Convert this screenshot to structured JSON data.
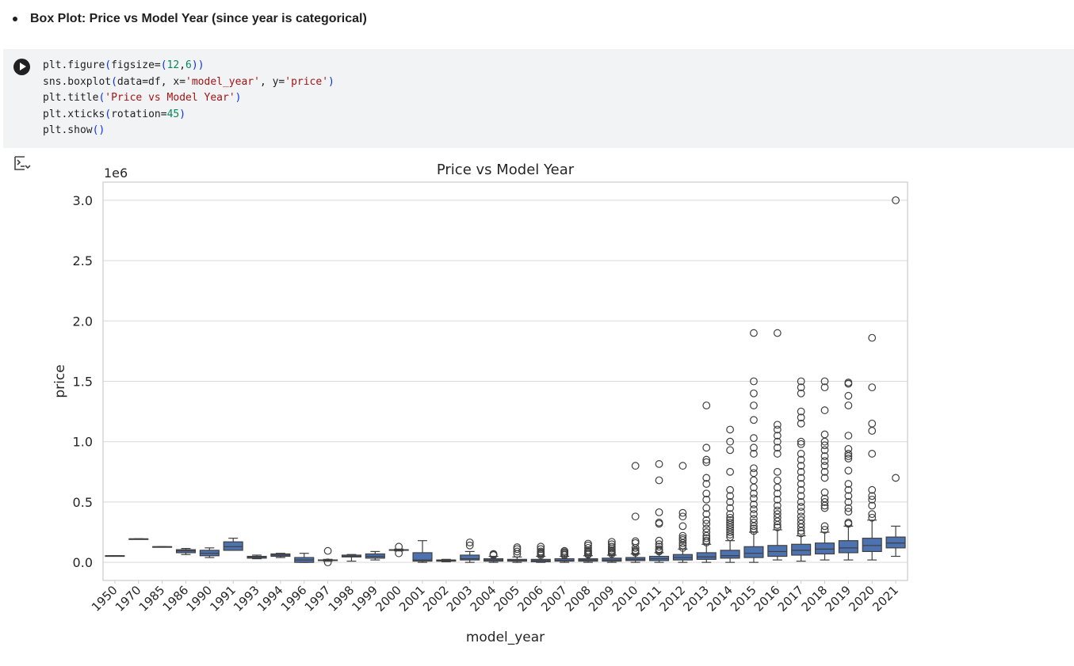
{
  "markdown": {
    "bullet_text": "Box Plot: Price vs Model Year (since year is categorical)"
  },
  "code_cell": {
    "lines": [
      [
        {
          "t": "plt.figure"
        },
        {
          "t": "(",
          "c": "par"
        },
        {
          "t": "figsize="
        },
        {
          "t": "(",
          "c": "par"
        },
        {
          "t": "12",
          "c": "num"
        },
        {
          "t": ","
        },
        {
          "t": "6",
          "c": "num"
        },
        {
          "t": "))",
          "c": "par"
        }
      ],
      [
        {
          "t": "sns.boxplot"
        },
        {
          "t": "(",
          "c": "par"
        },
        {
          "t": "data=df, x="
        },
        {
          "t": "'model_year'",
          "c": "str"
        },
        {
          "t": ", y="
        },
        {
          "t": "'price'",
          "c": "str"
        },
        {
          "t": ")",
          "c": "par"
        }
      ],
      [
        {
          "t": "plt.title"
        },
        {
          "t": "(",
          "c": "par"
        },
        {
          "t": "'Price vs Model Year'",
          "c": "str"
        },
        {
          "t": ")",
          "c": "par"
        }
      ],
      [
        {
          "t": "plt.xticks"
        },
        {
          "t": "(",
          "c": "par"
        },
        {
          "t": "rotation="
        },
        {
          "t": "45",
          "c": "num"
        },
        {
          "t": ")",
          "c": "par"
        }
      ],
      [
        {
          "t": "plt.show"
        },
        {
          "t": "()",
          "c": "par"
        }
      ]
    ]
  },
  "icons": {
    "run": "play-icon",
    "output_toggle": "output-toggle-icon"
  },
  "colors": {
    "box_fill": "#4c72b0",
    "box_edge": "#3f3f3f",
    "grid": "#d9d9d9",
    "cell_bg": "#f2f3f5"
  },
  "chart_data": {
    "type": "box",
    "title": "Price vs Model Year",
    "xlabel": "model_year",
    "ylabel": "price",
    "y_offset_text": "1e6",
    "ylim": [
      -0.15,
      3.15
    ],
    "yticks": [
      0.0,
      0.5,
      1.0,
      1.5,
      2.0,
      2.5,
      3.0
    ],
    "ytick_labels": [
      "0.0",
      "0.5",
      "1.0",
      "1.5",
      "2.0",
      "2.5",
      "3.0"
    ],
    "grid": true,
    "xtick_rotation": 45,
    "categories": [
      "1950",
      "1970",
      "1985",
      "1986",
      "1990",
      "1991",
      "1993",
      "1994",
      "1996",
      "1997",
      "1998",
      "1999",
      "2000",
      "2001",
      "2002",
      "2003",
      "2004",
      "2005",
      "2006",
      "2007",
      "2008",
      "2009",
      "2010",
      "2011",
      "2012",
      "2013",
      "2014",
      "2015",
      "2016",
      "2017",
      "2018",
      "2019",
      "2020",
      "2021"
    ],
    "boxes": [
      {
        "whislo": 0.055,
        "q1": 0.055,
        "med": 0.055,
        "q3": 0.055,
        "whishi": 0.055,
        "fliers": []
      },
      {
        "whislo": 0.195,
        "q1": 0.195,
        "med": 0.195,
        "q3": 0.195,
        "whishi": 0.195,
        "fliers": []
      },
      {
        "whislo": 0.13,
        "q1": 0.13,
        "med": 0.13,
        "q3": 0.13,
        "whishi": 0.13,
        "fliers": []
      },
      {
        "whislo": 0.065,
        "q1": 0.08,
        "med": 0.095,
        "q3": 0.105,
        "whishi": 0.115,
        "fliers": []
      },
      {
        "whislo": 0.04,
        "q1": 0.055,
        "med": 0.075,
        "q3": 0.1,
        "whishi": 0.12,
        "fliers": []
      },
      {
        "whislo": 0.1,
        "q1": 0.1,
        "med": 0.13,
        "q3": 0.17,
        "whishi": 0.2,
        "fliers": []
      },
      {
        "whislo": 0.03,
        "q1": 0.035,
        "med": 0.045,
        "q3": 0.05,
        "whishi": 0.06,
        "fliers": []
      },
      {
        "whislo": 0.04,
        "q1": 0.05,
        "med": 0.06,
        "q3": 0.07,
        "whishi": 0.075,
        "fliers": []
      },
      {
        "whislo": 0.0,
        "q1": 0.0,
        "med": 0.02,
        "q3": 0.04,
        "whishi": 0.075,
        "fliers": []
      },
      {
        "whislo": 0.01,
        "q1": 0.02,
        "med": 0.02,
        "q3": 0.02,
        "whishi": 0.025,
        "fliers": [
          0.095,
          0.0
        ]
      },
      {
        "whislo": 0.01,
        "q1": 0.045,
        "med": 0.05,
        "q3": 0.06,
        "whishi": 0.065,
        "fliers": []
      },
      {
        "whislo": 0.02,
        "q1": 0.035,
        "med": 0.05,
        "q3": 0.07,
        "whishi": 0.09,
        "fliers": []
      },
      {
        "whislo": 0.095,
        "q1": 0.1,
        "med": 0.1,
        "q3": 0.105,
        "whishi": 0.11,
        "fliers": [
          0.13,
          0.075
        ]
      },
      {
        "whislo": 0.0,
        "q1": 0.01,
        "med": 0.02,
        "q3": 0.08,
        "whishi": 0.18,
        "fliers": []
      },
      {
        "whislo": 0.005,
        "q1": 0.01,
        "med": 0.015,
        "q3": 0.02,
        "whishi": 0.025,
        "fliers": []
      },
      {
        "whislo": 0.0,
        "q1": 0.02,
        "med": 0.03,
        "q3": 0.06,
        "whishi": 0.09,
        "fliers": [
          0.165,
          0.14
        ]
      },
      {
        "whislo": 0.0,
        "q1": 0.01,
        "med": 0.02,
        "q3": 0.03,
        "whishi": 0.05,
        "fliers": [
          0.07,
          0.065,
          0.06
        ]
      },
      {
        "whislo": 0.0,
        "q1": 0.01,
        "med": 0.015,
        "q3": 0.025,
        "whishi": 0.045,
        "fliers": [
          0.125,
          0.11,
          0.09,
          0.07
        ]
      },
      {
        "whislo": 0.0,
        "q1": 0.005,
        "med": 0.015,
        "q3": 0.025,
        "whishi": 0.05,
        "fliers": [
          0.13,
          0.11,
          0.09,
          0.08,
          0.07,
          0.06
        ]
      },
      {
        "whislo": 0.0,
        "q1": 0.01,
        "med": 0.015,
        "q3": 0.03,
        "whishi": 0.05,
        "fliers": [
          0.095,
          0.085,
          0.075,
          0.065,
          0.06
        ]
      },
      {
        "whislo": 0.0,
        "q1": 0.01,
        "med": 0.02,
        "q3": 0.03,
        "whishi": 0.055,
        "fliers": [
          0.155,
          0.14,
          0.12,
          0.1,
          0.09,
          0.08,
          0.07,
          0.065
        ]
      },
      {
        "whislo": 0.0,
        "q1": 0.01,
        "med": 0.02,
        "q3": 0.035,
        "whishi": 0.06,
        "fliers": [
          0.17,
          0.15,
          0.13,
          0.115,
          0.1,
          0.09,
          0.08,
          0.07
        ]
      },
      {
        "whislo": 0.0,
        "q1": 0.015,
        "med": 0.025,
        "q3": 0.04,
        "whishi": 0.07,
        "fliers": [
          0.8,
          0.38,
          0.175,
          0.16,
          0.12,
          0.1,
          0.09,
          0.08
        ]
      },
      {
        "whislo": 0.0,
        "q1": 0.015,
        "med": 0.03,
        "q3": 0.05,
        "whishi": 0.08,
        "fliers": [
          0.815,
          0.68,
          0.415,
          0.33,
          0.32,
          0.18,
          0.15,
          0.13,
          0.11,
          0.1,
          0.09
        ]
      },
      {
        "whislo": 0.0,
        "q1": 0.02,
        "med": 0.04,
        "q3": 0.065,
        "whishi": 0.11,
        "fliers": [
          0.8,
          0.41,
          0.38,
          0.3,
          0.22,
          0.2,
          0.185,
          0.16,
          0.14,
          0.12
        ]
      },
      {
        "whislo": 0.0,
        "q1": 0.025,
        "med": 0.045,
        "q3": 0.08,
        "whishi": 0.15,
        "fliers": [
          1.3,
          0.95,
          0.85,
          0.83,
          0.7,
          0.65,
          0.57,
          0.52,
          0.45,
          0.4,
          0.35,
          0.32,
          0.28,
          0.25,
          0.22,
          0.2,
          0.18,
          0.165
        ]
      },
      {
        "whislo": 0.0,
        "q1": 0.035,
        "med": 0.055,
        "q3": 0.1,
        "whishi": 0.18,
        "fliers": [
          1.1,
          1.0,
          0.93,
          0.75,
          0.6,
          0.55,
          0.5,
          0.45,
          0.4,
          0.37,
          0.35,
          0.33,
          0.31,
          0.29,
          0.27,
          0.25,
          0.23,
          0.21
        ]
      },
      {
        "whislo": 0.0,
        "q1": 0.04,
        "med": 0.075,
        "q3": 0.13,
        "whishi": 0.25,
        "fliers": [
          1.9,
          1.5,
          1.4,
          1.3,
          1.18,
          1.03,
          0.95,
          0.9,
          0.78,
          0.74,
          0.68,
          0.62,
          0.57,
          0.53,
          0.48,
          0.44,
          0.4,
          0.36,
          0.33,
          0.3,
          0.28,
          0.26
        ]
      },
      {
        "whislo": 0.02,
        "q1": 0.05,
        "med": 0.09,
        "q3": 0.14,
        "whishi": 0.27,
        "fliers": [
          1.9,
          1.14,
          1.1,
          1.05,
          1.0,
          0.95,
          0.9,
          0.75,
          0.68,
          0.62,
          0.57,
          0.52,
          0.47,
          0.43,
          0.4,
          0.37,
          0.34,
          0.31,
          0.29
        ]
      },
      {
        "whislo": 0.01,
        "q1": 0.06,
        "med": 0.1,
        "q3": 0.15,
        "whishi": 0.22,
        "fliers": [
          1.5,
          1.45,
          1.4,
          1.25,
          1.2,
          1.15,
          1.0,
          0.98,
          0.9,
          0.85,
          0.8,
          0.75,
          0.7,
          0.65,
          0.6,
          0.55,
          0.5,
          0.46,
          0.42,
          0.38,
          0.35,
          0.32,
          0.29,
          0.26,
          0.24
        ]
      },
      {
        "whislo": 0.02,
        "q1": 0.07,
        "med": 0.11,
        "q3": 0.16,
        "whishi": 0.25,
        "fliers": [
          1.5,
          1.45,
          1.26,
          1.06,
          1.0,
          0.97,
          0.93,
          0.88,
          0.84,
          0.8,
          0.75,
          0.7,
          0.58,
          0.53,
          0.5,
          0.47,
          0.45,
          0.3,
          0.27
        ]
      },
      {
        "whislo": 0.02,
        "q1": 0.08,
        "med": 0.12,
        "q3": 0.18,
        "whishi": 0.3,
        "fliers": [
          1.49,
          1.48,
          1.38,
          1.3,
          1.05,
          0.94,
          0.9,
          0.88,
          0.86,
          0.76,
          0.65,
          0.6,
          0.55,
          0.5,
          0.45,
          0.42,
          0.33,
          0.32
        ]
      },
      {
        "whislo": 0.02,
        "q1": 0.09,
        "med": 0.14,
        "q3": 0.2,
        "whishi": 0.35,
        "fliers": [
          1.86,
          1.45,
          1.15,
          1.09,
          0.9,
          0.6,
          0.55,
          0.52,
          0.47,
          0.4,
          0.37
        ]
      },
      {
        "whislo": 0.05,
        "q1": 0.12,
        "med": 0.16,
        "q3": 0.21,
        "whishi": 0.3,
        "fliers": [
          3.0,
          0.7
        ]
      }
    ]
  }
}
